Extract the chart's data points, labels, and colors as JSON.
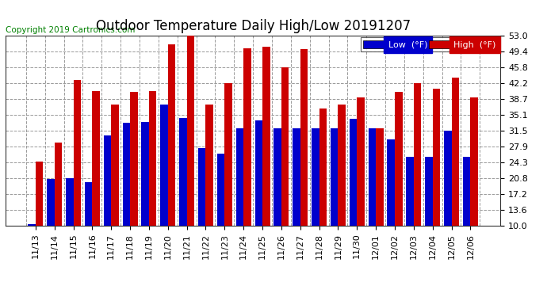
{
  "title": "Outdoor Temperature Daily High/Low 20191207",
  "copyright": "Copyright 2019 Cartronics.com",
  "legend_low": "Low  (°F)",
  "legend_high": "High  (°F)",
  "categories": [
    "11/13",
    "11/14",
    "11/15",
    "11/16",
    "11/17",
    "11/18",
    "11/19",
    "11/20",
    "11/21",
    "11/22",
    "11/23",
    "11/24",
    "11/25",
    "11/26",
    "11/27",
    "11/28",
    "11/29",
    "11/30",
    "12/01",
    "12/02",
    "12/03",
    "12/04",
    "12/05",
    "12/06"
  ],
  "low": [
    10.3,
    20.5,
    20.8,
    19.8,
    30.5,
    33.3,
    33.5,
    37.5,
    34.3,
    27.5,
    26.3,
    32.0,
    33.8,
    32.0,
    32.0,
    32.0,
    32.0,
    34.2,
    32.0,
    29.5,
    25.5,
    25.5,
    31.5,
    25.5
  ],
  "high": [
    24.5,
    28.8,
    43.0,
    40.5,
    37.5,
    40.3,
    40.5,
    51.0,
    53.0,
    37.5,
    42.3,
    50.2,
    50.5,
    45.8,
    50.0,
    36.5,
    37.5,
    39.0,
    32.0,
    40.3,
    42.2,
    41.0,
    43.5,
    39.0
  ],
  "ylim": [
    10.0,
    53.0
  ],
  "ybase": 10.0,
  "yticks": [
    10.0,
    13.6,
    17.2,
    20.8,
    24.3,
    27.9,
    31.5,
    35.1,
    38.7,
    42.2,
    45.8,
    49.4,
    53.0
  ],
  "bar_color_low": "#0000cc",
  "bar_color_high": "#cc0000",
  "background_color": "#ffffff",
  "plot_bg_color": "#ffffff",
  "grid_color": "#999999",
  "title_fontsize": 12,
  "copyright_fontsize": 7.5,
  "tick_fontsize": 8,
  "legend_fontsize": 8
}
